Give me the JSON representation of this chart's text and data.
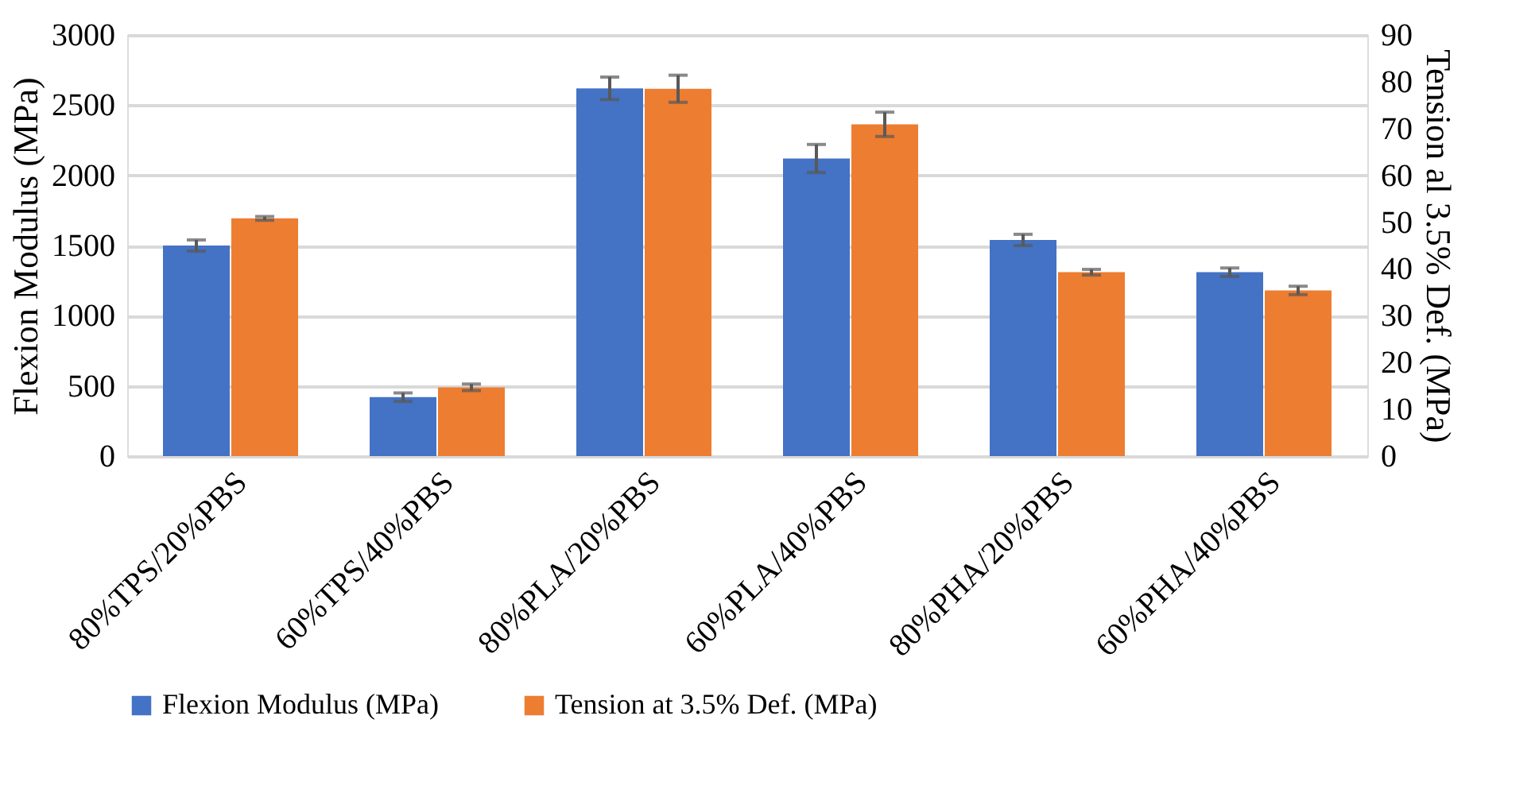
{
  "chart_data": {
    "type": "bar",
    "categories": [
      "80%TPS/20%PBS",
      "60%TPS/40%PBS",
      "80%PLA/20%PBS",
      "60%PLA/40%PBS",
      "80%PHA/20%PBS",
      "60%PHA/40%PBS"
    ],
    "series": [
      {
        "name": "Flexion Modulus (MPa)",
        "color": "#4472c4",
        "values": [
          1500,
          420,
          2620,
          2120,
          1540,
          1310
        ],
        "errors": [
          40,
          30,
          80,
          100,
          40,
          30
        ]
      },
      {
        "name": "Tension at 3.5% Def. (MPa)",
        "color": "#ed7d31",
        "axis": "y2",
        "values": [
          50.8,
          14.7,
          78.5,
          70.9,
          39.3,
          35.4
        ],
        "errors": [
          0.4,
          0.7,
          2.9,
          2.6,
          0.6,
          0.9
        ]
      }
    ],
    "ylabel": "Flexion Modulus (MPa)",
    "y2label": "Tension al 3.5% Def. (MPa)",
    "ylim": [
      0,
      3000
    ],
    "yticks": [
      0,
      500,
      1000,
      1500,
      2000,
      2500,
      3000
    ],
    "y2lim": [
      0,
      90
    ],
    "y2ticks": [
      0,
      10,
      20,
      30,
      40,
      50,
      60,
      70,
      80,
      90
    ],
    "grid": "y",
    "legend": "bottom"
  }
}
